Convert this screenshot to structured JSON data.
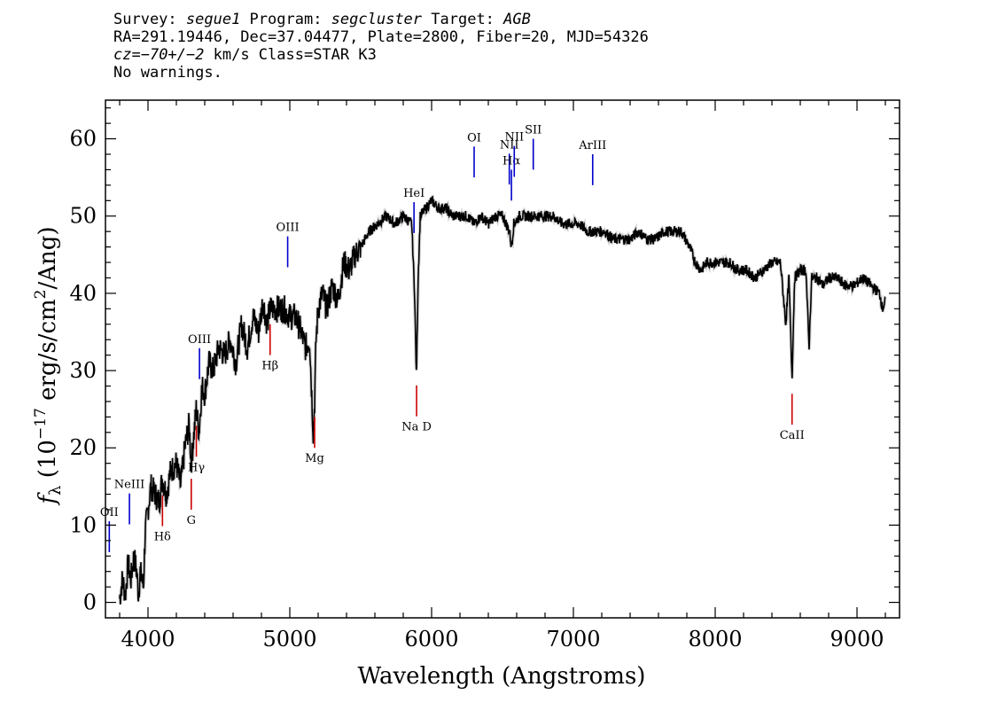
{
  "header": {
    "survey_label": "Survey: ",
    "survey": "segue1",
    "program_label": " Program: ",
    "program": "segcluster",
    "target_label": " Target: ",
    "target": "AGB",
    "coords_line": "RA=291.19446, Dec=37.04477, Plate=2800, Fiber=20, MJD=54326",
    "cz_label": "cz",
    "cz_value": "=−70+/−2",
    "class_text": " km/s Class=STAR K3",
    "warnings": "No warnings."
  },
  "chart_data": {
    "type": "line",
    "title": "",
    "xlabel": "Wavelength (Angstroms)",
    "ylabel_prefix": "f",
    "ylabel_sub": "λ",
    "ylabel_main": " (10",
    "ylabel_exp": "−17",
    "ylabel_rest": " erg/s/cm",
    "ylabel_exp2": "2",
    "ylabel_end": "/Ang)",
    "xlim": [
      3700,
      9300
    ],
    "ylim": [
      -2,
      65
    ],
    "xticks": [
      4000,
      5000,
      6000,
      7000,
      8000,
      9000
    ],
    "yticks": [
      0,
      10,
      20,
      30,
      40,
      50,
      60
    ],
    "grid": false,
    "colors": {
      "flux": "#000000",
      "error": "#b8b8b8",
      "emission": "#0000cc",
      "absorption": "#cc0000"
    },
    "series": [
      {
        "x": [
          3800,
          3820,
          3840,
          3860,
          3880,
          3900,
          3920,
          3933,
          3945,
          3968,
          3980,
          4000,
          4020,
          4050,
          4080,
          4100,
          4130,
          4160,
          4200,
          4230,
          4260,
          4290,
          4305,
          4320,
          4340,
          4360,
          4380,
          4400,
          4430,
          4460,
          4500,
          4540,
          4580,
          4620,
          4660,
          4700,
          4740,
          4780,
          4810,
          4840,
          4861,
          4880,
          4920,
          4960,
          5000,
          5040,
          5080,
          5110,
          5140,
          5165,
          5175,
          5185,
          5200,
          5230,
          5260,
          5300,
          5340,
          5380,
          5420,
          5460,
          5500,
          5560,
          5620,
          5680,
          5740,
          5800,
          5860,
          5880,
          5893,
          5905,
          5920,
          5960,
          6000,
          6050,
          6100,
          6150,
          6200,
          6250,
          6300,
          6350,
          6400,
          6450,
          6500,
          6550,
          6563,
          6580,
          6620,
          6680,
          6740,
          6800,
          6860,
          6920,
          6980,
          7040,
          7100,
          7160,
          7220,
          7280,
          7340,
          7400,
          7460,
          7520,
          7580,
          7640,
          7700,
          7760,
          7820,
          7860,
          7900,
          7940,
          7980,
          8040,
          8100,
          8160,
          8220,
          8280,
          8340,
          8400,
          8460,
          8498,
          8520,
          8542,
          8560,
          8600,
          8640,
          8662,
          8680,
          8720,
          8760,
          8800,
          8860,
          8920,
          8980,
          9040,
          9100,
          9160,
          9180,
          9200
        ],
        "y": [
          0.5,
          3,
          1,
          5,
          3,
          6,
          4,
          1,
          4,
          2,
          9,
          12,
          15,
          14,
          13,
          16,
          14,
          17,
          18,
          15,
          20,
          23,
          18,
          21,
          25,
          22,
          28,
          27,
          31,
          30,
          33,
          32,
          34,
          31,
          36,
          33,
          37,
          35,
          39,
          36,
          38,
          38,
          38,
          38,
          37,
          37,
          35,
          33,
          34,
          22,
          26,
          34,
          38,
          40,
          38,
          41,
          39,
          44,
          43,
          45,
          46,
          48,
          49,
          50,
          49,
          50,
          49,
          40,
          29,
          42,
          50,
          51,
          52,
          51,
          51,
          50,
          50,
          50,
          49,
          50,
          49,
          50,
          50,
          48,
          46,
          49,
          50,
          50,
          50,
          50,
          50,
          49,
          49,
          49,
          48,
          48,
          48,
          47,
          47,
          47,
          48,
          47,
          47,
          48,
          48,
          48,
          46,
          44,
          43,
          44,
          44,
          44,
          44,
          43,
          43,
          42,
          43,
          44,
          44,
          36,
          42,
          29,
          42,
          43,
          43,
          33,
          42,
          42,
          41,
          42,
          42,
          41,
          41,
          42,
          41,
          40,
          38,
          39
        ]
      }
    ],
    "lines": [
      {
        "label": "OII",
        "x": 3727,
        "type": "emission"
      },
      {
        "label": "NeIII",
        "x": 3869,
        "type": "emission"
      },
      {
        "label": "Hδ",
        "x": 4102,
        "type": "absorption"
      },
      {
        "label": "G",
        "x": 4305,
        "type": "absorption"
      },
      {
        "label": "Hγ",
        "x": 4341,
        "type": "absorption"
      },
      {
        "label": "OIII",
        "x": 4363,
        "type": "emission"
      },
      {
        "label": "Hβ",
        "x": 4861,
        "type": "absorption"
      },
      {
        "label": "OIII",
        "x": 4985,
        "type": "emission"
      },
      {
        "label": "Mg",
        "x": 5175,
        "type": "absorption"
      },
      {
        "label": "HeI",
        "x": 5876,
        "type": "emission"
      },
      {
        "label": "Na D",
        "x": 5894,
        "type": "absorption"
      },
      {
        "label": "OI",
        "x": 6300,
        "type": "emission"
      },
      {
        "label": "NII",
        "x": 6548,
        "type": "emission"
      },
      {
        "label": "Hα",
        "x": 6563,
        "type": "emission"
      },
      {
        "label": "NII",
        "x": 6583,
        "type": "emission"
      },
      {
        "label": "SII",
        "x": 6717,
        "type": "emission"
      },
      {
        "label": "ArIII",
        "x": 7136,
        "type": "emission"
      },
      {
        "label": "CaII",
        "x": 8542,
        "type": "absorption"
      }
    ]
  }
}
